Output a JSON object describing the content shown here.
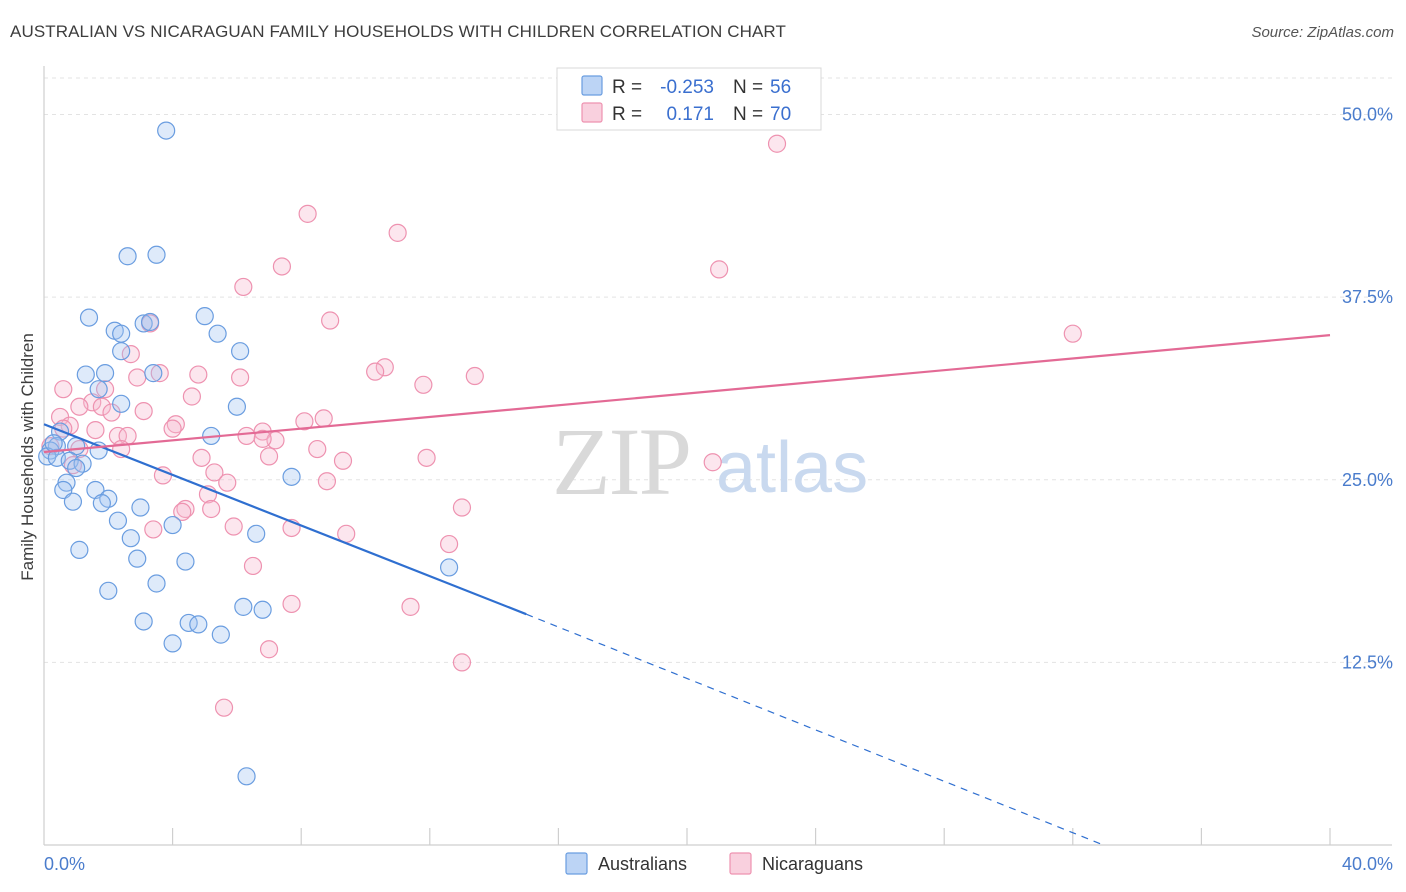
{
  "title": "AUSTRALIAN VS NICARAGUAN FAMILY HOUSEHOLDS WITH CHILDREN CORRELATION CHART",
  "source": "Source: ZipAtlas.com",
  "watermark": {
    "zip": "ZIP",
    "atlas": "atlas"
  },
  "legend": {
    "rows": [
      {
        "r_label": "R =",
        "r_value": "-0.253",
        "n_label": "N =",
        "n_value": "56"
      },
      {
        "r_label": "R =",
        "r_value": "0.171",
        "n_label": "N =",
        "n_value": "70"
      }
    ]
  },
  "bottom_legend": [
    "Australians",
    "Nicaraguans"
  ],
  "chart_data": {
    "type": "scatter",
    "title": "AUSTRALIAN VS NICARAGUAN FAMILY HOUSEHOLDS WITH CHILDREN CORRELATION CHART",
    "xlabel": "",
    "ylabel": "Family Households with Children",
    "xlim": [
      0,
      40
    ],
    "ylim": [
      0,
      52.5
    ],
    "x_tick_labels": [
      "0.0%",
      "40.0%"
    ],
    "y_ticks": [
      12.5,
      25.0,
      37.5,
      50.0
    ],
    "y_tick_labels": [
      "12.5%",
      "25.0%",
      "37.5%",
      "50.0%"
    ],
    "grid": "horizontal dashed",
    "legend_position": "top-center",
    "colors": {
      "Australians": "#6a9de0",
      "Nicaraguans": "#ee92b0",
      "Australians_line": "#2f6fd0",
      "Nicaraguans_line": "#e36a95"
    },
    "series": [
      {
        "name": "Australians",
        "r": -0.253,
        "n": 56,
        "trend": {
          "x0": 0,
          "y0": 28.8,
          "x1": 15.0,
          "y1": 15.8,
          "dashed_to_x": 40,
          "dashed_to_y": -6.2
        },
        "points": [
          [
            3.8,
            48.9
          ],
          [
            2.6,
            40.3
          ],
          [
            3.5,
            40.4
          ],
          [
            1.4,
            36.1
          ],
          [
            5.0,
            36.2
          ],
          [
            3.1,
            35.7
          ],
          [
            2.2,
            35.2
          ],
          [
            2.4,
            35.0
          ],
          [
            5.4,
            35.0
          ],
          [
            3.3,
            35.8
          ],
          [
            2.4,
            33.8
          ],
          [
            6.1,
            33.8
          ],
          [
            1.3,
            32.2
          ],
          [
            1.9,
            32.3
          ],
          [
            3.4,
            32.3
          ],
          [
            1.7,
            31.2
          ],
          [
            2.4,
            30.2
          ],
          [
            6.0,
            30.0
          ],
          [
            0.5,
            28.3
          ],
          [
            5.2,
            28.0
          ],
          [
            0.4,
            27.3
          ],
          [
            1.0,
            27.3
          ],
          [
            1.7,
            27.0
          ],
          [
            0.2,
            27.0
          ],
          [
            0.1,
            26.6
          ],
          [
            0.4,
            26.5
          ],
          [
            0.8,
            26.3
          ],
          [
            1.2,
            26.1
          ],
          [
            7.7,
            25.2
          ],
          [
            0.7,
            24.8
          ],
          [
            1.6,
            24.3
          ],
          [
            0.6,
            24.3
          ],
          [
            2.0,
            23.7
          ],
          [
            0.9,
            23.5
          ],
          [
            1.8,
            23.4
          ],
          [
            3.0,
            23.1
          ],
          [
            4.0,
            21.9
          ],
          [
            2.3,
            22.2
          ],
          [
            2.7,
            21.0
          ],
          [
            6.6,
            21.3
          ],
          [
            1.1,
            20.2
          ],
          [
            2.9,
            19.6
          ],
          [
            4.4,
            19.4
          ],
          [
            12.6,
            19.0
          ],
          [
            3.5,
            17.9
          ],
          [
            2.0,
            17.4
          ],
          [
            6.2,
            16.3
          ],
          [
            6.8,
            16.1
          ],
          [
            3.1,
            15.3
          ],
          [
            4.5,
            15.2
          ],
          [
            4.8,
            15.1
          ],
          [
            5.5,
            14.4
          ],
          [
            4.0,
            13.8
          ],
          [
            6.3,
            4.7
          ],
          [
            0.3,
            27.5
          ],
          [
            1.0,
            25.8
          ]
        ]
      },
      {
        "name": "Nicaraguans",
        "r": 0.171,
        "n": 70,
        "trend": {
          "x0": 0,
          "y0": 26.9,
          "x1": 40,
          "y1": 34.9
        },
        "points": [
          [
            22.8,
            48.0
          ],
          [
            8.2,
            43.2
          ],
          [
            11.0,
            41.9
          ],
          [
            7.4,
            39.6
          ],
          [
            21.0,
            39.4
          ],
          [
            6.2,
            38.2
          ],
          [
            8.9,
            35.9
          ],
          [
            3.3,
            35.7
          ],
          [
            32.0,
            35.0
          ],
          [
            2.7,
            33.6
          ],
          [
            10.6,
            32.7
          ],
          [
            10.3,
            32.4
          ],
          [
            3.6,
            32.3
          ],
          [
            4.8,
            32.2
          ],
          [
            6.1,
            32.0
          ],
          [
            2.9,
            32.0
          ],
          [
            13.4,
            32.1
          ],
          [
            11.8,
            31.5
          ],
          [
            0.6,
            31.2
          ],
          [
            1.9,
            31.2
          ],
          [
            4.6,
            30.7
          ],
          [
            1.5,
            30.3
          ],
          [
            1.1,
            30.0
          ],
          [
            1.8,
            30.0
          ],
          [
            0.5,
            29.3
          ],
          [
            2.1,
            29.6
          ],
          [
            3.1,
            29.7
          ],
          [
            8.7,
            29.2
          ],
          [
            8.1,
            29.0
          ],
          [
            4.1,
            28.8
          ],
          [
            0.8,
            28.7
          ],
          [
            0.6,
            28.5
          ],
          [
            4.0,
            28.5
          ],
          [
            1.6,
            28.4
          ],
          [
            6.8,
            28.3
          ],
          [
            2.3,
            28.0
          ],
          [
            2.6,
            28.0
          ],
          [
            6.3,
            28.0
          ],
          [
            7.2,
            27.7
          ],
          [
            6.8,
            27.8
          ],
          [
            1.1,
            27.1
          ],
          [
            2.4,
            27.1
          ],
          [
            8.5,
            27.1
          ],
          [
            0.2,
            27.3
          ],
          [
            7.0,
            26.6
          ],
          [
            4.9,
            26.5
          ],
          [
            9.3,
            26.3
          ],
          [
            11.9,
            26.5
          ],
          [
            20.8,
            26.2
          ],
          [
            0.9,
            26.0
          ],
          [
            3.7,
            25.3
          ],
          [
            5.3,
            25.5
          ],
          [
            8.8,
            24.9
          ],
          [
            5.7,
            24.8
          ],
          [
            5.1,
            24.0
          ],
          [
            13.0,
            23.1
          ],
          [
            4.4,
            23.0
          ],
          [
            5.2,
            23.0
          ],
          [
            4.3,
            22.8
          ],
          [
            5.9,
            21.8
          ],
          [
            3.4,
            21.6
          ],
          [
            7.7,
            21.7
          ],
          [
            9.4,
            21.3
          ],
          [
            12.6,
            20.6
          ],
          [
            6.5,
            19.1
          ],
          [
            7.7,
            16.5
          ],
          [
            11.4,
            16.3
          ],
          [
            13.0,
            12.5
          ],
          [
            7.0,
            13.4
          ],
          [
            5.6,
            9.4
          ]
        ]
      }
    ]
  }
}
